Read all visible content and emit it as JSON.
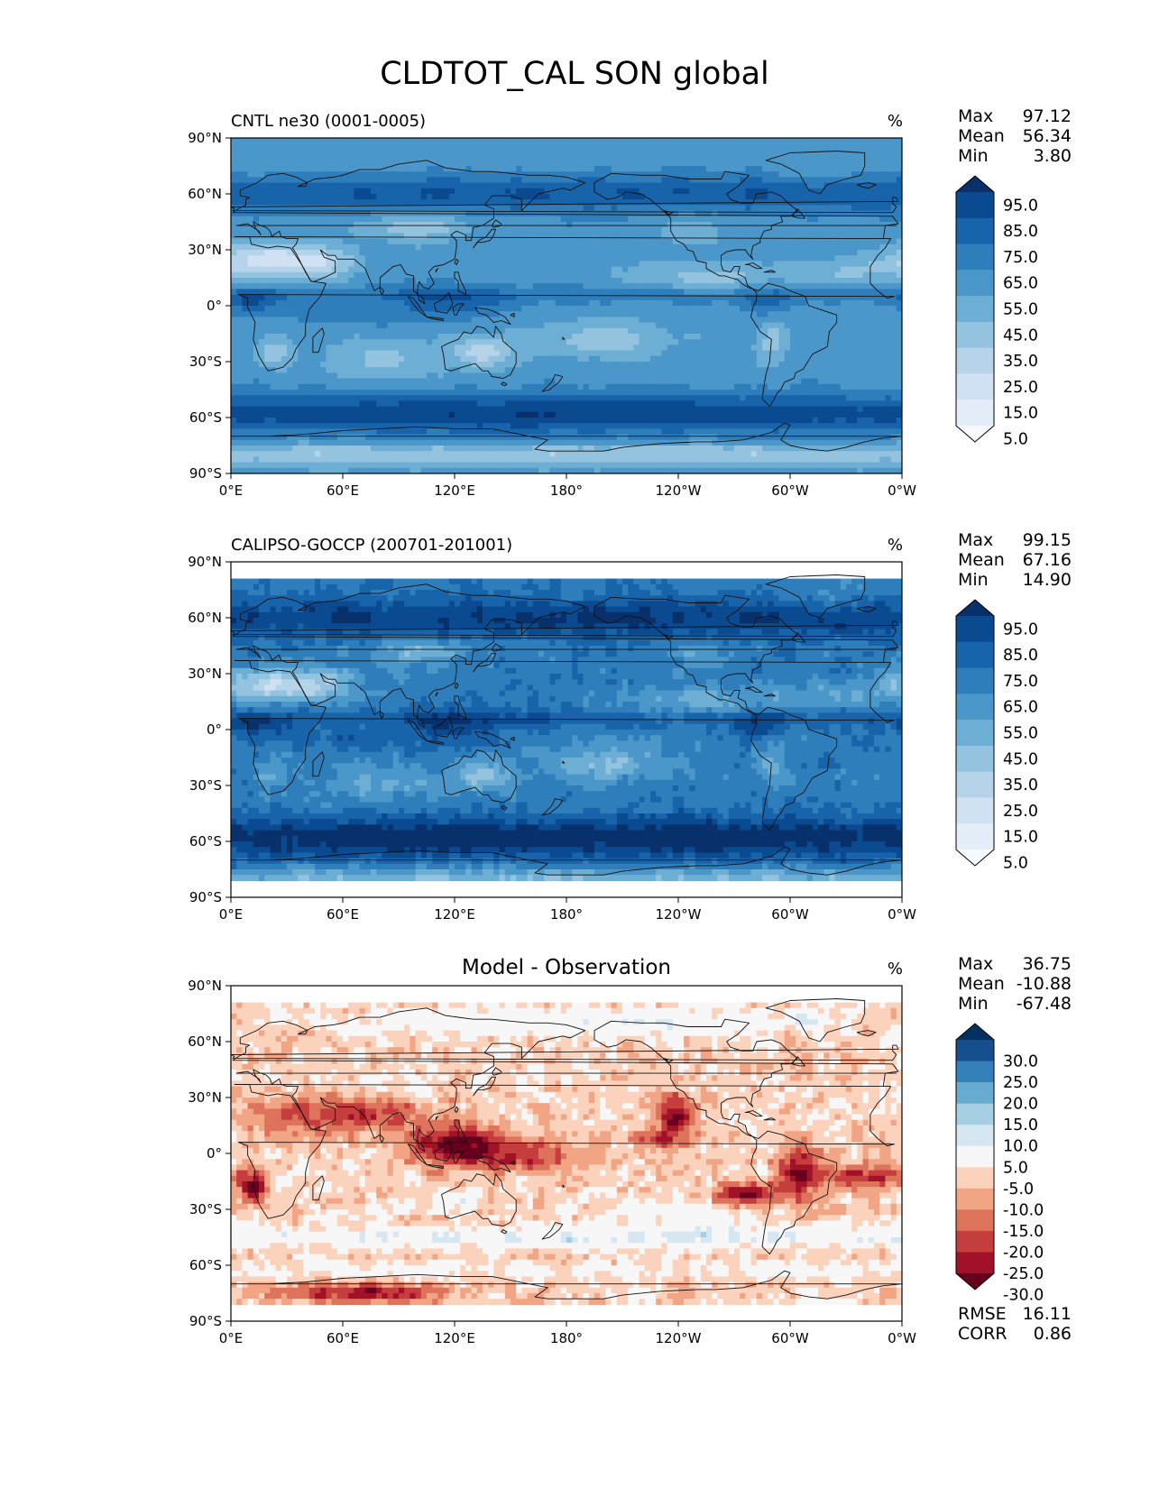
{
  "figure": {
    "title": "CLDTOT_CAL SON global"
  },
  "axes": {
    "lon_ticks": [
      "0°E",
      "60°E",
      "120°E",
      "180°",
      "120°W",
      "60°W",
      "0°W"
    ],
    "lat_ticks": [
      "90°N",
      "60°N",
      "30°N",
      "0°",
      "30°S",
      "60°S",
      "90°S"
    ]
  },
  "colors": {
    "blues": [
      "#f7fbff",
      "#e3eef9",
      "#cfe1f2",
      "#b5d4e9",
      "#93c3df",
      "#6daed5",
      "#4b97c9",
      "#2f7ebc",
      "#1864aa",
      "#0a4a90",
      "#08306b"
    ],
    "rdbu": [
      "#67001f",
      "#a11228",
      "#c53e3d",
      "#de735c",
      "#f2a585",
      "#fbd3bd",
      "#f7f7f7",
      "#d6e7f1",
      "#a7cfe4",
      "#68abd0",
      "#3480b9",
      "#164f8d",
      "#053061"
    ]
  },
  "chart_data": [
    {
      "type": "heatmap",
      "title": "CNTL ne30 (0001-0005)",
      "units": "%",
      "stats": [
        {
          "label": "Max",
          "value": "97.12"
        },
        {
          "label": "Mean",
          "value": "56.34"
        },
        {
          "label": "Min",
          "value": "3.80"
        }
      ],
      "colorbar": {
        "cmap": "blues",
        "labels": [
          "95.0",
          "85.0",
          "75.0",
          "65.0",
          "55.0",
          "45.0",
          "35.0",
          "25.0",
          "15.0",
          "5.0"
        ]
      },
      "xlim": [
        0,
        360
      ],
      "ylim": [
        -90,
        90
      ]
    },
    {
      "type": "heatmap",
      "title": "CALIPSO-GOCCP (200701-201001)",
      "units": "%",
      "stats": [
        {
          "label": "Max",
          "value": "99.15"
        },
        {
          "label": "Mean",
          "value": "67.16"
        },
        {
          "label": "Min",
          "value": "14.90"
        }
      ],
      "colorbar": {
        "cmap": "blues",
        "labels": [
          "95.0",
          "85.0",
          "75.0",
          "65.0",
          "55.0",
          "45.0",
          "35.0",
          "25.0",
          "15.0",
          "5.0"
        ]
      },
      "xlim": [
        0,
        360
      ],
      "ylim": [
        -90,
        90
      ]
    },
    {
      "type": "heatmap",
      "title": "Model - Observation",
      "units": "%",
      "stats": [
        {
          "label": "Max",
          "value": "36.75"
        },
        {
          "label": "Mean",
          "value": "-10.88"
        },
        {
          "label": "Min",
          "value": "-67.48"
        }
      ],
      "extra_stats": [
        {
          "label": "RMSE",
          "value": "16.11"
        },
        {
          "label": "CORR",
          "value": "0.86"
        }
      ],
      "colorbar": {
        "cmap": "rdbu",
        "labels": [
          "30.0",
          "25.0",
          "20.0",
          "15.0",
          "10.0",
          "5.0",
          "-5.0",
          "-10.0",
          "-15.0",
          "-20.0",
          "-25.0",
          "-30.0"
        ]
      },
      "xlim": [
        0,
        360
      ],
      "ylim": [
        -90,
        90
      ]
    }
  ]
}
